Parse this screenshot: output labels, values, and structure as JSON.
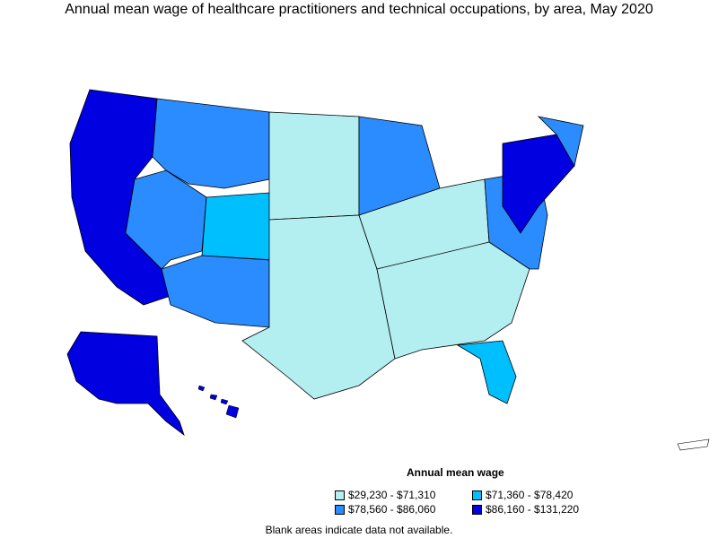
{
  "title": "Annual mean wage of healthcare practitioners and technical occupations, by area, May 2020",
  "legend": {
    "title": "Annual mean wage",
    "items": [
      {
        "label": "$29,230 - $71,310",
        "color": "#b3eef0"
      },
      {
        "label": "$71,360 - $78,420",
        "color": "#00bfff"
      },
      {
        "label": "$78,560 - $86,060",
        "color": "#2b8cff"
      },
      {
        "label": "$86,160 - $131,220",
        "color": "#0000e0"
      }
    ]
  },
  "note": "Blank areas indicate data not available."
}
